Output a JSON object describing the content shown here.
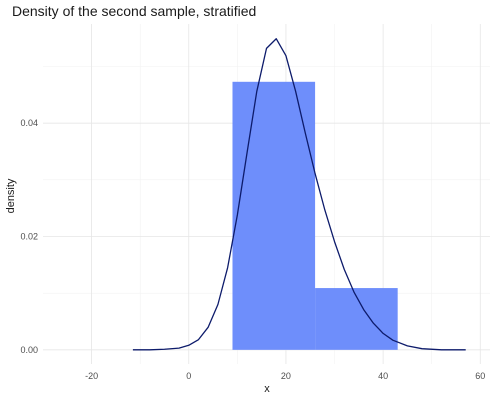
{
  "chart_data": {
    "type": "bar",
    "title": "Density of the second sample, stratified",
    "xlabel": "x",
    "ylabel": "density",
    "xlim": [
      -30,
      62
    ],
    "ylim": [
      -0.0025,
      0.0575
    ],
    "x_ticks": [
      -20,
      0,
      20,
      40,
      60
    ],
    "x_tick_labels": [
      "-20",
      "0",
      "20",
      "40",
      "60"
    ],
    "y_ticks": [
      0.0,
      0.02,
      0.04
    ],
    "y_tick_labels": [
      "0.00",
      "0.02",
      "0.04"
    ],
    "grid": true,
    "histogram": {
      "bins": [
        {
          "x_start": 9,
          "x_end": 26,
          "density": 0.0473
        },
        {
          "x_start": 26,
          "x_end": 43,
          "density": 0.0109
        }
      ],
      "color": "#6e8efb"
    },
    "density_curve": {
      "color": "#0d1b6b",
      "x": [
        -11.5,
        -8,
        -5,
        -2,
        0,
        2,
        4,
        6,
        8,
        10,
        12,
        14,
        16,
        18,
        20,
        22,
        24,
        26,
        28,
        30,
        32,
        34,
        36,
        38,
        40,
        42,
        45,
        48,
        52,
        57
      ],
      "y": [
        0.0,
        0.0,
        0.0001,
        0.0003,
        0.0008,
        0.0018,
        0.004,
        0.008,
        0.0145,
        0.0238,
        0.0348,
        0.0456,
        0.0532,
        0.0549,
        0.0519,
        0.0456,
        0.0382,
        0.0311,
        0.0247,
        0.0191,
        0.0142,
        0.0102,
        0.0071,
        0.0047,
        0.0029,
        0.0017,
        0.0007,
        0.0002,
        0.0,
        0.0
      ]
    }
  }
}
